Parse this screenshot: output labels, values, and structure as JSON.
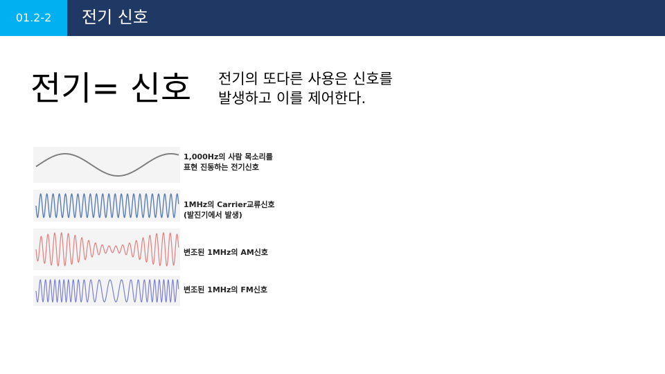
{
  "header": {
    "slide_number": "01.2-2",
    "title": "전기 신호",
    "bar_color": "#1f3864",
    "badge_color": "#00b0f0"
  },
  "main": {
    "heading": "전기= 신호",
    "description_line1": "전기의 또다른 사용은 신호를",
    "description_line2": "발생하고 이를 제어한다."
  },
  "waves": [
    {
      "label_line1": "1,000Hz의 사람 목소리를",
      "label_line2": "표현 진동하는 전기신호",
      "color": "#7f7f7f"
    },
    {
      "label_line1": "1MHz의 Carrier교류신호",
      "label_line2": "(발진기에서 발생)",
      "color": "#5b7db1"
    },
    {
      "label_line1": "변조된 1MHz의 AM신호",
      "color": "#e07f7f"
    },
    {
      "label_line1": "변조된 1MHz의 FM신호",
      "color": "#7a7fd0"
    }
  ]
}
